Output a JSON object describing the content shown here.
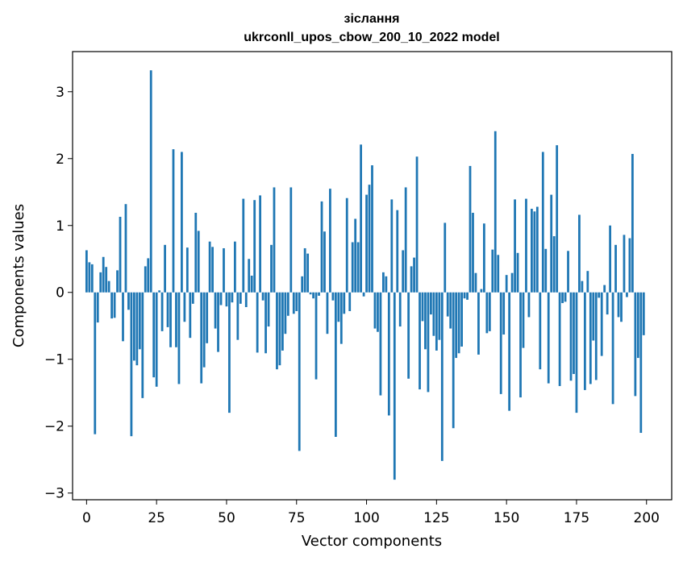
{
  "chart_data": {
    "type": "bar",
    "title": "зіслання",
    "subtitle": "ukrconll_upos_cbow_200_10_2022 model",
    "xlabel": "Vector components",
    "ylabel": "Components values",
    "xlim": [
      -5,
      209
    ],
    "ylim": [
      -3.1,
      3.6
    ],
    "xticks": [
      0,
      25,
      50,
      75,
      100,
      125,
      150,
      175,
      200
    ],
    "yticks": [
      -3,
      -2,
      -1,
      0,
      1,
      2,
      3
    ],
    "bar_color": "#1f77b4",
    "grid": false,
    "x": [
      0,
      1,
      2,
      3,
      4,
      5,
      6,
      7,
      8,
      9,
      10,
      11,
      12,
      13,
      14,
      15,
      16,
      17,
      18,
      19,
      20,
      21,
      22,
      23,
      24,
      25,
      26,
      27,
      28,
      29,
      30,
      31,
      32,
      33,
      34,
      35,
      36,
      37,
      38,
      39,
      40,
      41,
      42,
      43,
      44,
      45,
      46,
      47,
      48,
      49,
      50,
      51,
      52,
      53,
      54,
      55,
      56,
      57,
      58,
      59,
      60,
      61,
      62,
      63,
      64,
      65,
      66,
      67,
      68,
      69,
      70,
      71,
      72,
      73,
      74,
      75,
      76,
      77,
      78,
      79,
      80,
      81,
      82,
      83,
      84,
      85,
      86,
      87,
      88,
      89,
      90,
      91,
      92,
      93,
      94,
      95,
      96,
      97,
      98,
      99,
      100,
      101,
      102,
      103,
      104,
      105,
      106,
      107,
      108,
      109,
      110,
      111,
      112,
      113,
      114,
      115,
      116,
      117,
      118,
      119,
      120,
      121,
      122,
      123,
      124,
      125,
      126,
      127,
      128,
      129,
      130,
      131,
      132,
      133,
      134,
      135,
      136,
      137,
      138,
      139,
      140,
      141,
      142,
      143,
      144,
      145,
      146,
      147,
      148,
      149,
      150,
      151,
      152,
      153,
      154,
      155,
      156,
      157,
      158,
      159,
      160,
      161,
      162,
      163,
      164,
      165,
      166,
      167,
      168,
      169,
      170,
      171,
      172,
      173,
      174,
      175,
      176,
      177,
      178,
      179,
      180,
      181,
      182,
      183,
      184,
      185,
      186,
      187,
      188,
      189,
      190,
      191,
      192,
      193,
      194,
      195,
      196,
      197,
      198,
      199
    ],
    "values": [
      0.63,
      0.45,
      0.42,
      -2.12,
      -0.45,
      0.3,
      0.53,
      0.38,
      0.17,
      -0.39,
      -0.38,
      0.33,
      1.13,
      -0.73,
      1.32,
      -0.26,
      -2.15,
      -1.02,
      -1.09,
      -0.85,
      -1.58,
      0.39,
      0.51,
      3.32,
      -1.27,
      -1.41,
      0.03,
      -0.58,
      0.71,
      -0.52,
      -0.82,
      2.14,
      -0.82,
      -1.37,
      2.1,
      -0.44,
      0.67,
      -0.68,
      -0.17,
      1.19,
      0.92,
      -1.36,
      -1.12,
      -0.76,
      0.76,
      0.68,
      -0.54,
      -0.89,
      -0.19,
      0.66,
      -0.21,
      -1.8,
      -0.15,
      0.76,
      -0.71,
      -0.17,
      1.4,
      -0.22,
      0.5,
      0.25,
      1.38,
      -0.9,
      1.45,
      -0.12,
      -0.91,
      -0.51,
      0.71,
      1.57,
      -1.15,
      -1.09,
      -0.87,
      -0.62,
      -0.35,
      1.57,
      -0.32,
      -0.28,
      -2.37,
      0.24,
      0.66,
      0.58,
      -0.03,
      -0.09,
      -1.3,
      -0.05,
      1.36,
      0.91,
      -0.62,
      1.55,
      -0.12,
      -2.16,
      -0.44,
      -0.77,
      -0.32,
      1.41,
      -0.28,
      0.75,
      1.1,
      0.75,
      2.21,
      -0.06,
      1.46,
      1.61,
      1.9,
      -0.54,
      -0.59,
      -1.54,
      0.3,
      0.24,
      -1.84,
      1.39,
      -2.8,
      1.23,
      -0.51,
      0.63,
      1.57,
      -1.29,
      0.39,
      0.52,
      2.03,
      -1.45,
      -0.43,
      -0.85,
      -1.49,
      -0.33,
      -0.65,
      -0.87,
      -0.71,
      -2.52,
      1.04,
      -0.36,
      -0.54,
      -2.03,
      -0.98,
      -0.91,
      -0.81,
      -0.09,
      -0.11,
      1.89,
      1.19,
      0.29,
      -0.93,
      0.05,
      1.03,
      -0.61,
      -0.58,
      0.64,
      2.41,
      0.56,
      -1.52,
      -0.63,
      0.26,
      -1.77,
      0.29,
      1.39,
      0.59,
      -1.57,
      -0.83,
      1.4,
      -0.37,
      1.25,
      1.21,
      1.28,
      -1.15,
      2.1,
      0.65,
      -1.36,
      1.46,
      0.84,
      2.2,
      -1.4,
      -0.16,
      -0.14,
      0.62,
      -1.32,
      -1.22,
      -1.8,
      1.16,
      0.17,
      -1.46,
      0.32,
      -1.37,
      -0.72,
      -1.31,
      -0.08,
      -0.95,
      0.11,
      -0.33,
      1.0,
      -1.67,
      0.71,
      -0.37,
      -0.44,
      0.86,
      -0.07,
      0.81,
      2.07,
      -1.55,
      -0.98,
      -2.1,
      -0.64
    ]
  }
}
